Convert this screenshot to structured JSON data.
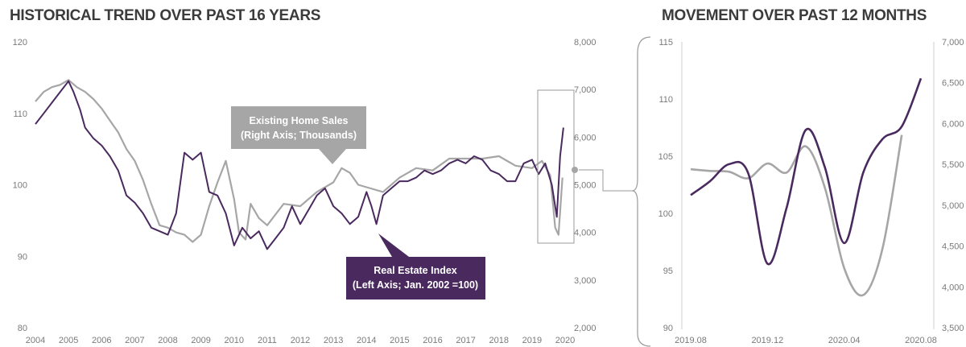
{
  "colors": {
    "index": "#4a2a5e",
    "sales": "#a6a6a6",
    "callout_index_bg": "#4a2a5e",
    "callout_sales_bg": "#a6a6a6",
    "axis_text": "#7a7a7a",
    "title": "#3b3b3b"
  },
  "chart_data": [
    {
      "type": "line",
      "title": "HISTORICAL TREND OVER PAST 16 YEARS",
      "x_tick_labels": [
        "2004",
        "2005",
        "2006",
        "2007",
        "2008",
        "2009",
        "2010",
        "2011",
        "2012",
        "2013",
        "2014",
        "2015",
        "2016",
        "2017",
        "2018",
        "2019",
        "2020"
      ],
      "xlim": [
        2004,
        2020
      ],
      "left_axis": {
        "ylim": [
          80,
          120
        ],
        "ticks": [
          "80",
          "90",
          "100",
          "110",
          "120"
        ]
      },
      "right_axis": {
        "ylim": [
          2000,
          8000
        ],
        "ticks": [
          "2,000",
          "3,000",
          "4,000",
          "5,000",
          "6,000",
          "7,000",
          "8,000"
        ]
      },
      "series": [
        {
          "name": "Real Estate Index",
          "axis": "left",
          "label_line1": "Real Estate Index",
          "label_line2": "(Left Axis; Jan. 2002 =100)",
          "x": [
            2004.0,
            2004.25,
            2004.5,
            2004.75,
            2005.0,
            2005.15,
            2005.35,
            2005.5,
            2005.75,
            2006.0,
            2006.25,
            2006.5,
            2006.75,
            2007.0,
            2007.25,
            2007.5,
            2007.75,
            2008.0,
            2008.25,
            2008.5,
            2008.75,
            2009.0,
            2009.25,
            2009.5,
            2009.75,
            2010.0,
            2010.25,
            2010.5,
            2010.75,
            2011.0,
            2011.25,
            2011.5,
            2011.75,
            2012.0,
            2012.25,
            2012.5,
            2012.75,
            2013.0,
            2013.25,
            2013.5,
            2013.75,
            2014.0,
            2014.15,
            2014.3,
            2014.5,
            2014.75,
            2015.0,
            2015.25,
            2015.5,
            2015.75,
            2016.0,
            2016.25,
            2016.5,
            2016.75,
            2017.0,
            2017.25,
            2017.5,
            2017.75,
            2018.0,
            2018.25,
            2018.5,
            2018.75,
            2019.0,
            2019.2,
            2019.4,
            2019.6,
            2019.75,
            2019.85,
            2019.95
          ],
          "y": [
            108.5,
            110,
            111.5,
            113,
            114.5,
            113,
            110.5,
            108,
            106.5,
            105.5,
            104,
            102,
            98.5,
            97.5,
            96,
            94,
            93.5,
            93,
            96,
            104.5,
            103.5,
            104.5,
            99,
            98.5,
            96,
            91.5,
            94,
            92.5,
            93.5,
            91,
            92.5,
            94,
            97,
            94.5,
            96.5,
            98.5,
            99.5,
            97,
            96,
            94.5,
            95.5,
            99,
            97,
            94.5,
            98.5,
            99.5,
            100.5,
            100.5,
            101,
            102,
            101.5,
            102,
            103,
            103.5,
            103,
            104,
            103.5,
            102,
            101.5,
            100.5,
            100.5,
            103,
            103.5,
            101.5,
            103,
            100,
            95.5,
            104,
            108
          ]
        },
        {
          "name": "Existing Home Sales",
          "axis": "right",
          "label_line1": "Existing Home Sales",
          "label_line2": "(Right Axis; Thousands)",
          "x": [
            2004.0,
            2004.25,
            2004.5,
            2004.75,
            2005.0,
            2005.25,
            2005.5,
            2005.75,
            2006.0,
            2006.25,
            2006.5,
            2006.75,
            2007.0,
            2007.25,
            2007.5,
            2007.75,
            2008.0,
            2008.25,
            2008.5,
            2008.75,
            2009.0,
            2009.25,
            2009.5,
            2009.75,
            2010.0,
            2010.15,
            2010.35,
            2010.5,
            2010.75,
            2011.0,
            2011.5,
            2012.0,
            2012.5,
            2013.0,
            2013.25,
            2013.5,
            2013.75,
            2014.0,
            2014.5,
            2015.0,
            2015.5,
            2016.0,
            2016.5,
            2017.0,
            2017.5,
            2018.0,
            2018.5,
            2019.0,
            2019.3,
            2019.55,
            2019.7,
            2019.8,
            2019.92
          ],
          "y": [
            6750,
            6950,
            7050,
            7100,
            7200,
            7050,
            6950,
            6800,
            6600,
            6350,
            6100,
            5750,
            5500,
            5100,
            4600,
            4150,
            4100,
            4000,
            3950,
            3800,
            3950,
            4550,
            5050,
            5500,
            4700,
            4000,
            3850,
            4600,
            4300,
            4150,
            4600,
            4550,
            4850,
            5050,
            5350,
            5250,
            5000,
            4950,
            4850,
            5150,
            5350,
            5300,
            5550,
            5550,
            5550,
            5600,
            5400,
            5350,
            5500,
            5200,
            4100,
            3950,
            5150
          ]
        }
      ]
    },
    {
      "type": "line",
      "title": "MOVEMENT OVER PAST 12 MONTHS",
      "x_tick_labels": [
        "2019.08",
        "2019.12",
        "2020.04",
        "2020.08"
      ],
      "xlim": [
        0,
        12
      ],
      "left_axis": {
        "ylim": [
          90,
          115
        ],
        "ticks": [
          "90",
          "95",
          "100",
          "105",
          "110",
          "115"
        ]
      },
      "right_axis": {
        "ylim": [
          3500,
          7000
        ],
        "ticks": [
          "3,500",
          "4,000",
          "4,500",
          "5,000",
          "5,500",
          "6,000",
          "6,500",
          "7,000"
        ]
      },
      "series": [
        {
          "name": "Real Estate Index",
          "axis": "left",
          "x": [
            0,
            1,
            2,
            3,
            4,
            5,
            6,
            7,
            8,
            9,
            10,
            11,
            12
          ],
          "y": [
            101.6,
            102.8,
            104.3,
            103.5,
            95.6,
            100.5,
            107.3,
            104,
            97.4,
            103.6,
            106.5,
            107.6,
            111.8
          ]
        },
        {
          "name": "Existing Home Sales",
          "axis": "right",
          "x": [
            0,
            1,
            2,
            3,
            4,
            5,
            6,
            7,
            8,
            9,
            10,
            11
          ],
          "y": [
            5440,
            5420,
            5410,
            5330,
            5510,
            5400,
            5720,
            5210,
            4230,
            3900,
            4470,
            5860
          ]
        }
      ]
    }
  ]
}
